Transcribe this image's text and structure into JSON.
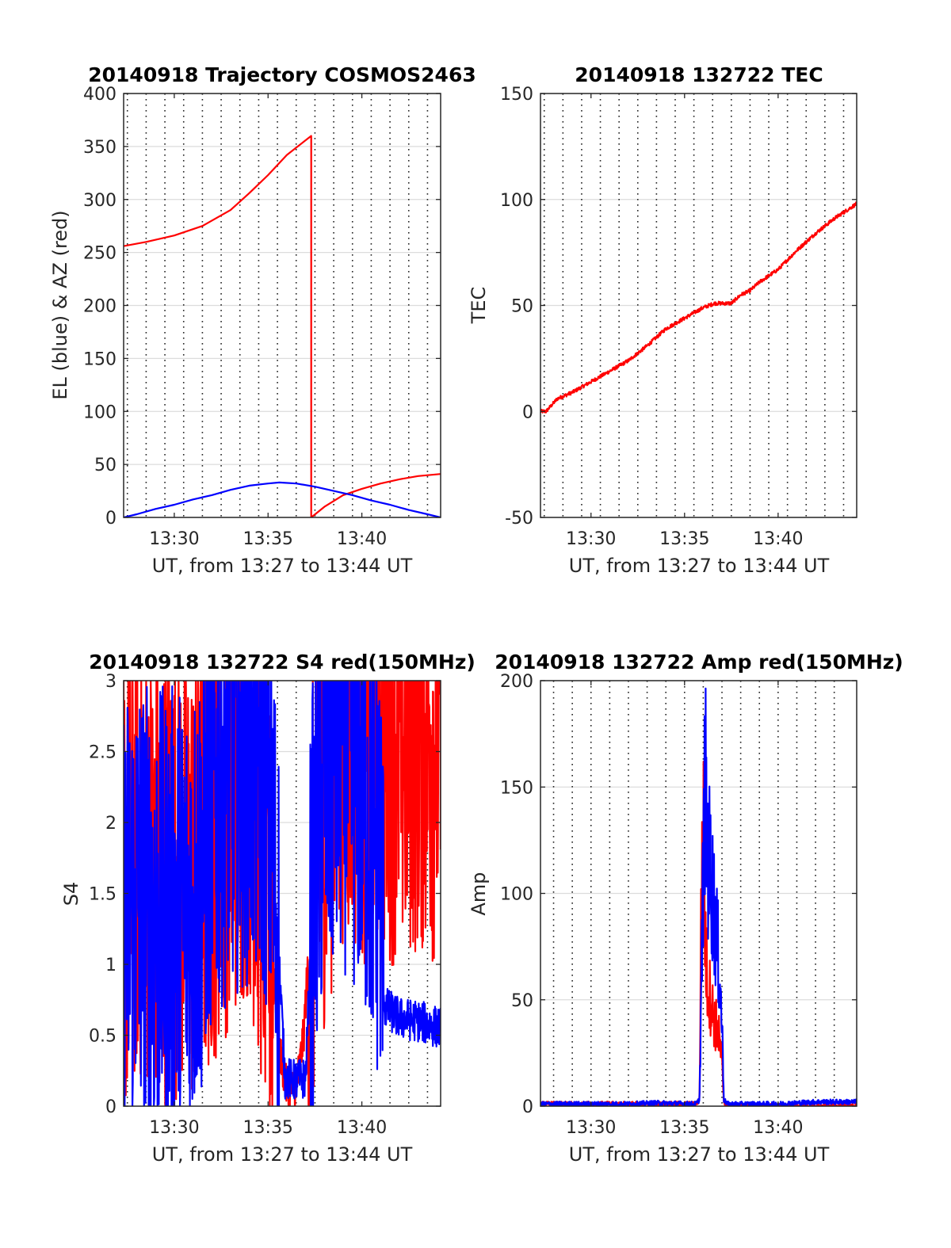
{
  "colors": {
    "red": "#ff0000",
    "blue": "#0000ff",
    "axis": "#262626",
    "grid": "#dcdcdc"
  },
  "chart_data": [
    {
      "type": "line",
      "title": "20140918 Trajectory COSMOS2463",
      "xlabel": "UT, from 13:27 to 13:44 UT",
      "ylabel": "EL (blue) & AZ (red)",
      "x_unit": "minutes after 13:00 UT",
      "xlim": [
        27.3,
        44.2
      ],
      "ylim": [
        0,
        400
      ],
      "x_ticks": [
        30,
        35,
        40
      ],
      "x_tick_labels": [
        "13:30",
        "13:35",
        "13:40"
      ],
      "y_ticks": [
        0,
        50,
        100,
        150,
        200,
        250,
        300,
        350,
        400
      ],
      "y_tick_labels": [
        "0",
        "50",
        "100",
        "150",
        "200",
        "250",
        "300",
        "350",
        "400"
      ],
      "vertical_dotted_grid_x": [
        27.5,
        28.5,
        29.5,
        30.5,
        31.5,
        32.5,
        33.5,
        34.5,
        35.5,
        36.5,
        37.5,
        38.5,
        39.5,
        40.5,
        41.5,
        42.5,
        43.5
      ],
      "series": [
        {
          "color": "red",
          "points": [
            [
              27.3,
              256
            ],
            [
              28.5,
              260
            ],
            [
              30.0,
              266
            ],
            [
              31.5,
              275
            ],
            [
              33.0,
              290
            ],
            [
              34.0,
              306
            ],
            [
              35.0,
              323
            ],
            [
              36.0,
              342
            ],
            [
              37.3,
              360
            ],
            [
              37.3,
              0
            ],
            [
              38.0,
              10
            ],
            [
              39.0,
              21
            ],
            [
              40.0,
              27
            ],
            [
              41.0,
              32
            ],
            [
              42.0,
              36
            ],
            [
              43.0,
              39
            ],
            [
              44.2,
              41
            ]
          ]
        },
        {
          "color": "blue",
          "points": [
            [
              27.3,
              0
            ],
            [
              28.0,
              3
            ],
            [
              29.0,
              8
            ],
            [
              30.0,
              12
            ],
            [
              31.0,
              17
            ],
            [
              32.0,
              21
            ],
            [
              33.0,
              26
            ],
            [
              34.0,
              30
            ],
            [
              35.0,
              32
            ],
            [
              35.6,
              33
            ],
            [
              36.5,
              32
            ],
            [
              37.5,
              29
            ],
            [
              38.5,
              25
            ],
            [
              39.5,
              21
            ],
            [
              40.5,
              16
            ],
            [
              41.5,
              12
            ],
            [
              42.5,
              7
            ],
            [
              43.5,
              3
            ],
            [
              44.2,
              0
            ]
          ]
        }
      ]
    },
    {
      "type": "line",
      "title": "20140918 132722 TEC",
      "xlabel": "UT, from 13:27 to 13:44 UT",
      "ylabel": "TEC",
      "x_unit": "minutes after 13:00 UT",
      "xlim": [
        27.3,
        44.2
      ],
      "ylim": [
        -50,
        150
      ],
      "x_ticks": [
        30,
        35,
        40
      ],
      "x_tick_labels": [
        "13:30",
        "13:35",
        "13:40"
      ],
      "y_ticks": [
        -50,
        0,
        50,
        100,
        150
      ],
      "y_tick_labels": [
        "-50",
        "0",
        "50",
        "100",
        "150"
      ],
      "vertical_dotted_grid_x": [
        27.5,
        28.5,
        29.5,
        30.5,
        31.5,
        32.5,
        33.5,
        34.5,
        35.5,
        36.5,
        37.5,
        38.5,
        39.5,
        40.5,
        41.5,
        42.5,
        43.5
      ],
      "series": [
        {
          "color": "red",
          "noisy": true,
          "points": [
            [
              27.6,
              0
            ],
            [
              28.2,
              6
            ],
            [
              29.0,
              9
            ],
            [
              30.0,
              14
            ],
            [
              31.0,
              19
            ],
            [
              32.0,
              24
            ],
            [
              33.0,
              31
            ],
            [
              34.0,
              39
            ],
            [
              35.0,
              44
            ],
            [
              36.0,
              49
            ],
            [
              36.6,
              51
            ],
            [
              37.5,
              51
            ],
            [
              38.0,
              55
            ],
            [
              38.5,
              57
            ],
            [
              39.0,
              61
            ],
            [
              40.0,
              67
            ],
            [
              41.0,
              76
            ],
            [
              42.0,
              84
            ],
            [
              43.0,
              91
            ],
            [
              44.2,
              98
            ]
          ]
        }
      ]
    },
    {
      "type": "line",
      "title": "20140918 132722 S4 red(150MHz)",
      "xlabel": "UT, from 13:27 to 13:44 UT",
      "ylabel": "S4",
      "x_unit": "minutes after 13:00 UT",
      "xlim": [
        27.3,
        44.2
      ],
      "ylim": [
        0,
        3
      ],
      "x_ticks": [
        30,
        35,
        40
      ],
      "x_tick_labels": [
        "13:30",
        "13:35",
        "13:40"
      ],
      "y_ticks": [
        0,
        0.5,
        1,
        1.5,
        2,
        2.5,
        3
      ],
      "y_tick_labels": [
        "0",
        "0.5",
        "1",
        "1.5",
        "2",
        "2.5",
        "3"
      ],
      "vertical_dotted_grid_x": [
        27.5,
        28.5,
        29.5,
        30.5,
        31.5,
        32.5,
        33.5,
        34.5,
        35.5,
        36.5,
        37.5,
        38.5,
        39.5,
        40.5,
        41.5,
        42.5,
        43.5
      ],
      "series": [
        {
          "color": "red",
          "noisy": true,
          "points": [
            [
              27.3,
              1.5
            ],
            [
              28.0,
              1.8
            ],
            [
              29.0,
              1.6
            ],
            [
              30.0,
              1.7
            ],
            [
              31.0,
              1.6
            ],
            [
              32.0,
              1.9
            ],
            [
              33.0,
              2.2
            ],
            [
              34.0,
              2.4
            ],
            [
              34.8,
              1.6
            ],
            [
              35.3,
              1.0
            ],
            [
              35.6,
              0.4
            ],
            [
              36.0,
              0.12
            ],
            [
              36.5,
              0.12
            ],
            [
              36.9,
              0.5
            ],
            [
              37.2,
              1.2
            ],
            [
              37.6,
              1.8
            ],
            [
              38.0,
              2.2
            ],
            [
              38.5,
              2.5
            ],
            [
              39.0,
              2.8
            ],
            [
              40.0,
              2.6
            ],
            [
              41.0,
              2.7
            ],
            [
              42.0,
              2.6
            ],
            [
              43.0,
              2.7
            ],
            [
              44.2,
              2.6
            ]
          ]
        },
        {
          "color": "blue",
          "noisy": true,
          "points": [
            [
              27.3,
              1.3
            ],
            [
              28.0,
              1.5
            ],
            [
              29.0,
              1.3
            ],
            [
              30.0,
              1.35
            ],
            [
              31.0,
              1.4
            ],
            [
              31.5,
              1.7
            ],
            [
              32.0,
              2.2
            ],
            [
              33.0,
              2.4
            ],
            [
              34.0,
              2.5
            ],
            [
              35.0,
              2.3
            ],
            [
              35.6,
              1.0
            ],
            [
              35.9,
              0.2
            ],
            [
              36.5,
              0.18
            ],
            [
              37.0,
              0.2
            ],
            [
              37.3,
              1.2
            ],
            [
              37.7,
              2.0
            ],
            [
              38.0,
              2.4
            ],
            [
              39.0,
              2.6
            ],
            [
              40.0,
              2.3
            ],
            [
              41.0,
              1.7
            ],
            [
              41.2,
              0.7
            ],
            [
              42.0,
              0.62
            ],
            [
              43.0,
              0.6
            ],
            [
              44.2,
              0.55
            ]
          ]
        }
      ]
    },
    {
      "type": "line",
      "title": "20140918 132722 Amp red(150MHz)",
      "xlabel": "UT, from 13:27 to 13:44 UT",
      "ylabel": "Amp",
      "x_unit": "minutes after 13:00 UT",
      "xlim": [
        27.3,
        44.2
      ],
      "ylim": [
        0,
        200
      ],
      "x_ticks": [
        30,
        35,
        40
      ],
      "x_tick_labels": [
        "13:30",
        "13:35",
        "13:40"
      ],
      "y_ticks": [
        0,
        50,
        100,
        150,
        200
      ],
      "y_tick_labels": [
        "0",
        "50",
        "100",
        "150",
        "200"
      ],
      "vertical_dotted_grid_x": [
        28.0,
        29.0,
        30.0,
        31.0,
        32.0,
        33.0,
        34.0,
        35.0,
        36.0,
        37.0,
        38.0,
        39.0,
        40.0,
        41.0,
        42.0,
        43.0
      ],
      "series": [
        {
          "color": "red",
          "noisy": true,
          "points": [
            [
              27.3,
              1
            ],
            [
              35.6,
              1
            ],
            [
              35.8,
              3
            ],
            [
              35.9,
              100
            ],
            [
              36.0,
              130
            ],
            [
              36.1,
              80
            ],
            [
              36.2,
              60
            ],
            [
              36.4,
              50
            ],
            [
              36.6,
              40
            ],
            [
              36.8,
              35
            ],
            [
              37.0,
              20
            ],
            [
              37.1,
              2
            ],
            [
              37.3,
              0
            ],
            [
              44.2,
              0
            ]
          ]
        },
        {
          "color": "blue",
          "noisy": true,
          "points": [
            [
              27.3,
              1
            ],
            [
              30.0,
              1
            ],
            [
              32.0,
              1
            ],
            [
              33.5,
              1.5
            ],
            [
              35.6,
              1
            ],
            [
              35.8,
              3
            ],
            [
              35.9,
              60
            ],
            [
              36.1,
              155
            ],
            [
              36.2,
              120
            ],
            [
              36.4,
              110
            ],
            [
              36.6,
              90
            ],
            [
              36.8,
              70
            ],
            [
              37.0,
              40
            ],
            [
              37.1,
              3
            ],
            [
              37.3,
              1
            ],
            [
              40.0,
              1
            ],
            [
              42.0,
              2
            ],
            [
              44.2,
              2
            ]
          ]
        }
      ]
    }
  ]
}
